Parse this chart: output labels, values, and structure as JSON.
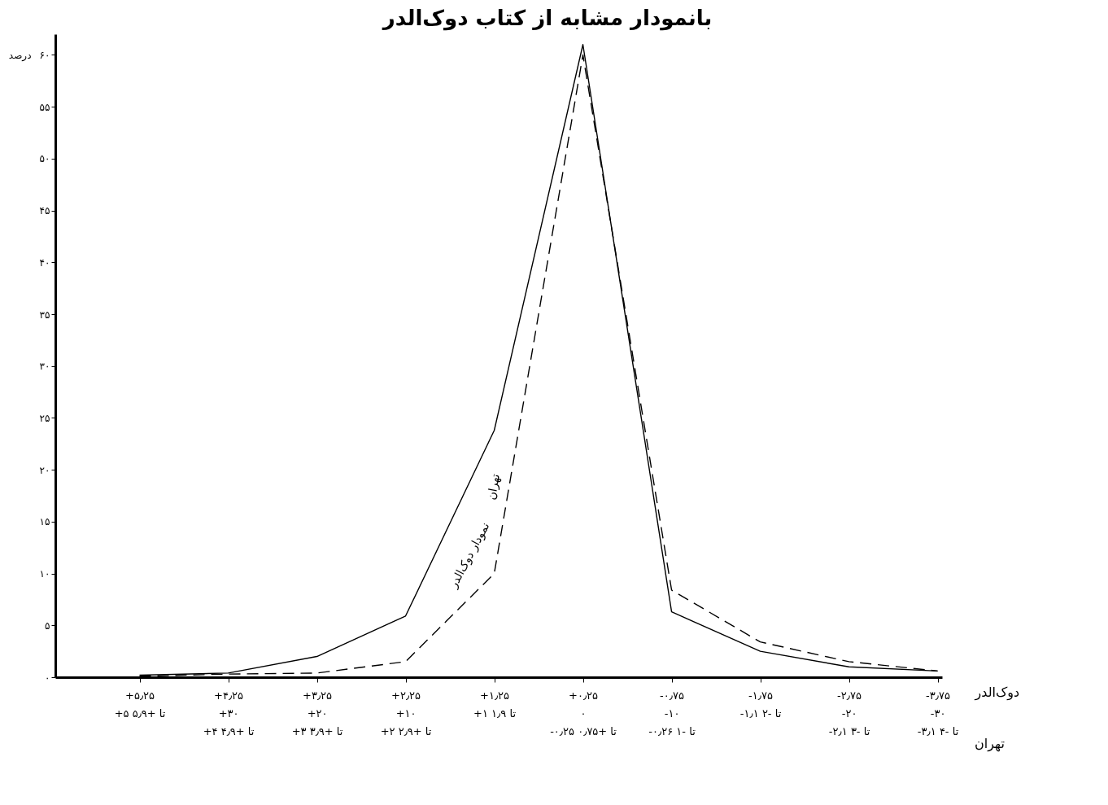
{
  "chart_data": {
    "type": "line",
    "title": "بانمودار مشابه از کتاب دوک‌الدر",
    "ylabel": "درصد",
    "xlabel": "دوک‌الدر",
    "annotations": [
      "تهران"
    ],
    "categories": [
      "+۵٫۲۵\n\n+۵ تا +۵٫۹",
      "+۴٫۲۵\n+۳۰\n+۴ تا +۴٫۹",
      "+۳٫۲۵\n+۲۰\n+۳ تا +۳٫۹",
      "+۲٫۲۵\n+۱۰\n+۲ تا +۲٫۹",
      "+۱٫۲۵\n\n+۱ تا ۱٫۹",
      "+۰٫۲۵\n۰\n-۰٫۲۵ تا +۰٫۷۵",
      "-۰٫۷۵\n-۱۰\n-۰٫۲۶ تا -۱",
      "-۱٫۷۵\n\n-۱٫۱ تا -۲",
      "-۲٫۷۵\n-۲۰\n-۲٫۱ تا -۳",
      "-۳٫۷۵\n-۳۰\n-۳٫۱ تا -۴"
    ],
    "series": [
      {
        "name": "نمودار دوک‌الدر",
        "color": "#000000",
        "line_style": "solid",
        "values": [
          0.2,
          0.4,
          2,
          5.9,
          23.8,
          61,
          6.3,
          2.5,
          1,
          0.6
        ]
      },
      {
        "name": "تهران",
        "color": "#000000",
        "line_style": "dashed",
        "values": [
          0.1,
          0.3,
          0.4,
          1.5,
          10,
          60,
          8.4,
          3.4,
          1.5,
          0.6
        ]
      }
    ],
    "ylim": [
      0,
      62
    ],
    "yticks": [
      {
        "value": 0,
        "label": "۰"
      },
      {
        "value": 5,
        "label": "۵"
      },
      {
        "value": 10,
        "label": "۱۰"
      },
      {
        "value": 15,
        "label": "۱۵"
      },
      {
        "value": 20,
        "label": "۲۰"
      },
      {
        "value": 25,
        "label": "۲۵"
      },
      {
        "value": 30,
        "label": "۳۰"
      },
      {
        "value": 35,
        "label": "۳۵"
      },
      {
        "value": 40,
        "label": "۴۰"
      },
      {
        "value": 45,
        "label": "۴۵"
      },
      {
        "value": 50,
        "label": "۵۰"
      },
      {
        "value": 55,
        "label": "۵۵"
      },
      {
        "value": 60,
        "label": "۶۰"
      }
    ],
    "marker": "none"
  }
}
